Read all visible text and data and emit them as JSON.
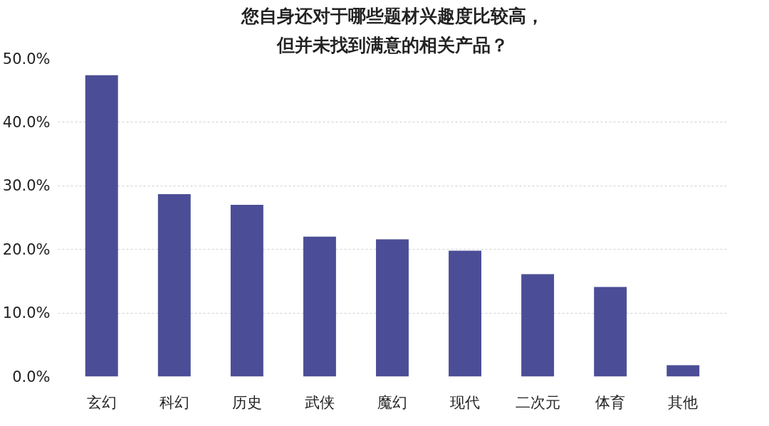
{
  "chart_data": {
    "type": "bar",
    "title": "您自身还对于哪些题材兴趣度比较高，",
    "subtitle": "但并未找到满意的相关产品？",
    "categories": [
      "玄幻",
      "科幻",
      "历史",
      "武侠",
      "魔幻",
      "现代",
      "二次元",
      "体育",
      "其他"
    ],
    "values": [
      47.4,
      28.7,
      27.0,
      22.0,
      21.6,
      19.8,
      16.1,
      14.1,
      1.8
    ],
    "color": "#4b4e96",
    "ylim": [
      0,
      50
    ],
    "yticks": [
      {
        "value": 0,
        "label": "0.0%"
      },
      {
        "value": 10,
        "label": "10.0%"
      },
      {
        "value": 20,
        "label": "20.0%"
      },
      {
        "value": 30,
        "label": "30.0%"
      },
      {
        "value": 40,
        "label": "40.0%"
      },
      {
        "value": 50,
        "label": "50.0%"
      }
    ],
    "grid": "y"
  }
}
